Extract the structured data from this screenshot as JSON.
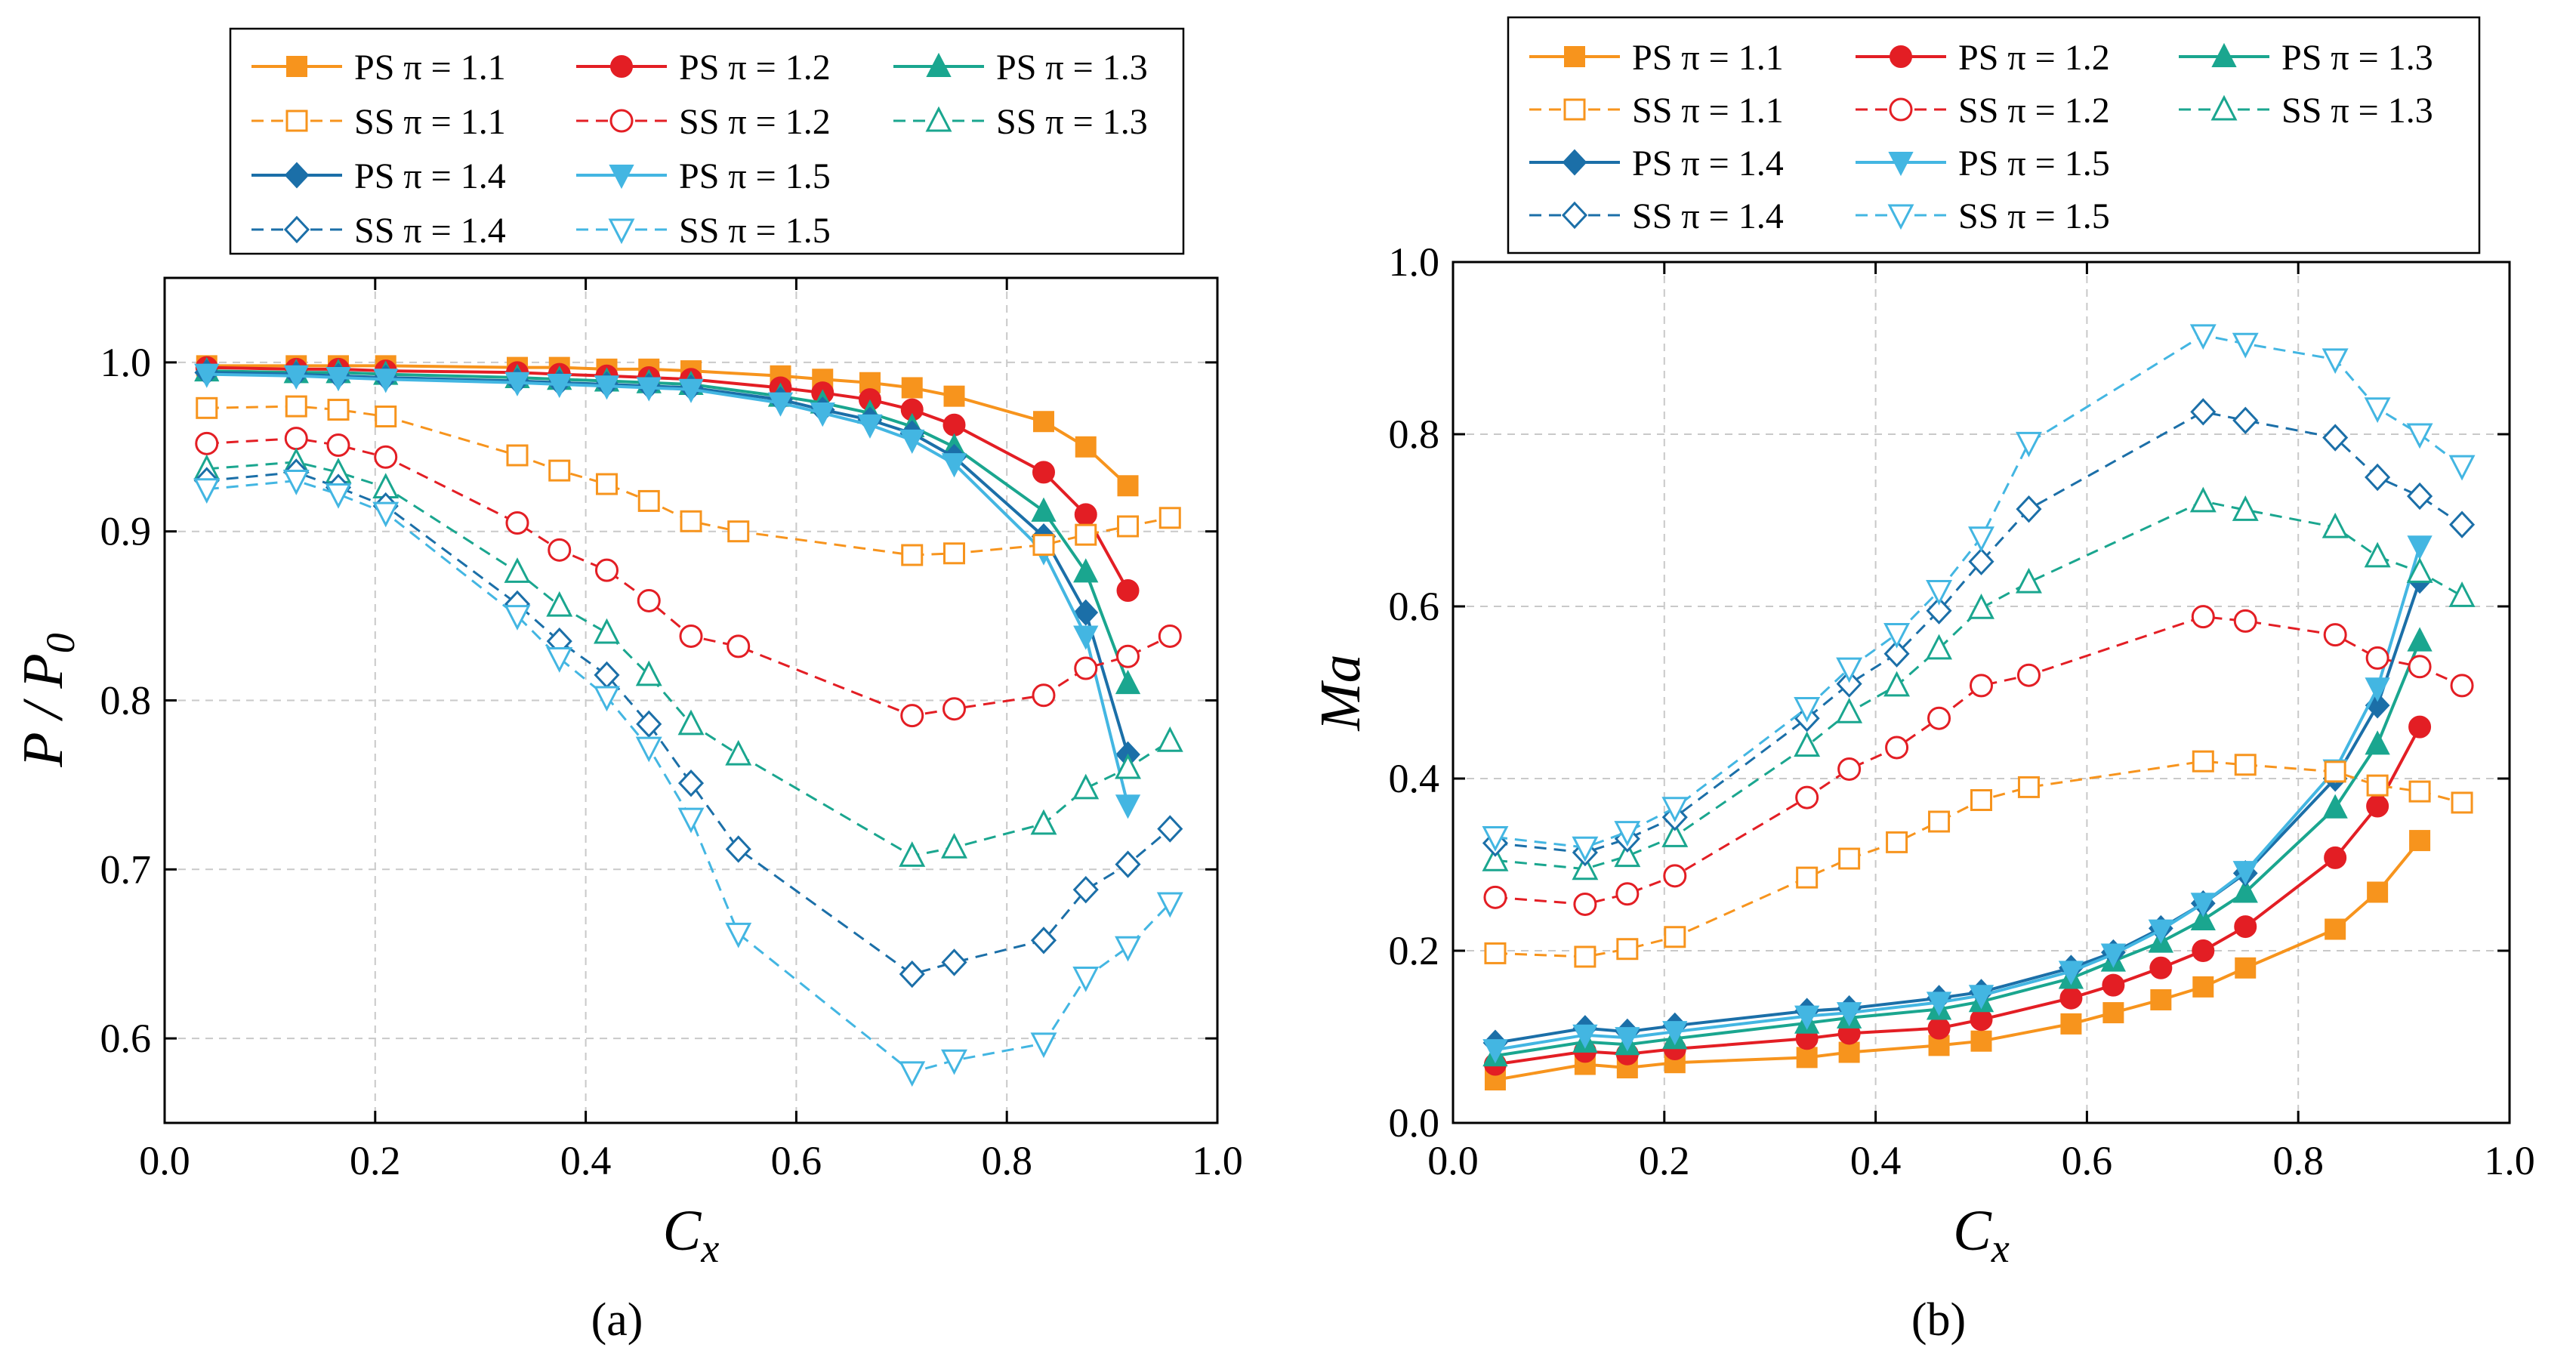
{
  "figure": {
    "label_a": "(a)",
    "label_b": "(b)"
  },
  "colors": {
    "pi_1_1": "#f7941d",
    "pi_1_2": "#e31e24",
    "pi_1_3": "#1aa68f",
    "pi_1_4": "#1b6fa8",
    "pi_1_5": "#43b6e2"
  },
  "chart_data": [
    {
      "id": "a",
      "type": "line",
      "xlabel": "C",
      "xlabel_sub": "x",
      "ylabel": "P / P",
      "ylabel_sub": "0",
      "xlim": [
        0.0,
        1.0
      ],
      "ylim": [
        0.55,
        1.05
      ],
      "xticks": [
        "0.0",
        "0.2",
        "0.4",
        "0.6",
        "0.8",
        "1.0"
      ],
      "yticks": [
        "0.6",
        "0.7",
        "0.8",
        "0.9",
        "1.0"
      ],
      "grid": true,
      "legend_position": "top",
      "series": [
        {
          "name": "PS π = 1.1",
          "side": "PS",
          "color": "#f7941d",
          "marker": "square",
          "filled": true,
          "dashed": false,
          "x": [
            0.04,
            0.125,
            0.165,
            0.21,
            0.335,
            0.375,
            0.42,
            0.46,
            0.5,
            0.585,
            0.625,
            0.67,
            0.71,
            0.75,
            0.835,
            0.875,
            0.915
          ],
          "y": [
            0.998,
            0.998,
            0.998,
            0.998,
            0.997,
            0.997,
            0.996,
            0.996,
            0.995,
            0.992,
            0.99,
            0.988,
            0.985,
            0.98,
            0.965,
            0.95,
            0.927
          ]
        },
        {
          "name": "PS π = 1.2",
          "side": "PS",
          "color": "#e31e24",
          "marker": "circle",
          "filled": true,
          "dashed": false,
          "x": [
            0.04,
            0.125,
            0.165,
            0.21,
            0.335,
            0.375,
            0.42,
            0.46,
            0.5,
            0.585,
            0.625,
            0.67,
            0.71,
            0.75,
            0.835,
            0.875,
            0.915
          ],
          "y": [
            0.997,
            0.996,
            0.996,
            0.995,
            0.994,
            0.993,
            0.992,
            0.991,
            0.99,
            0.985,
            0.982,
            0.978,
            0.972,
            0.963,
            0.935,
            0.91,
            0.865
          ]
        },
        {
          "name": "PS π = 1.3",
          "side": "PS",
          "color": "#1aa68f",
          "marker": "triangle-up",
          "filled": true,
          "dashed": false,
          "x": [
            0.04,
            0.125,
            0.165,
            0.21,
            0.335,
            0.375,
            0.42,
            0.46,
            0.5,
            0.585,
            0.625,
            0.67,
            0.71,
            0.75,
            0.835,
            0.875,
            0.915
          ],
          "y": [
            0.995,
            0.994,
            0.994,
            0.993,
            0.991,
            0.99,
            0.989,
            0.988,
            0.987,
            0.98,
            0.976,
            0.97,
            0.962,
            0.95,
            0.912,
            0.876,
            0.81
          ]
        },
        {
          "name": "PS π = 1.4",
          "side": "PS",
          "color": "#1b6fa8",
          "marker": "diamond",
          "filled": true,
          "dashed": false,
          "x": [
            0.04,
            0.125,
            0.165,
            0.21,
            0.335,
            0.375,
            0.42,
            0.46,
            0.5,
            0.585,
            0.625,
            0.67,
            0.71,
            0.75,
            0.835,
            0.875,
            0.915
          ],
          "y": [
            0.994,
            0.993,
            0.992,
            0.991,
            0.989,
            0.988,
            0.987,
            0.986,
            0.985,
            0.978,
            0.972,
            0.966,
            0.958,
            0.944,
            0.897,
            0.852,
            0.768
          ]
        },
        {
          "name": "PS π = 1.5",
          "side": "PS",
          "color": "#43b6e2",
          "marker": "triangle-down",
          "filled": true,
          "dashed": false,
          "x": [
            0.04,
            0.125,
            0.165,
            0.21,
            0.335,
            0.375,
            0.42,
            0.46,
            0.5,
            0.585,
            0.625,
            0.67,
            0.71,
            0.75,
            0.835,
            0.875,
            0.915
          ],
          "y": [
            0.993,
            0.992,
            0.991,
            0.99,
            0.988,
            0.987,
            0.986,
            0.985,
            0.984,
            0.976,
            0.97,
            0.963,
            0.954,
            0.94,
            0.888,
            0.838,
            0.738
          ]
        },
        {
          "name": "SS π = 1.1",
          "side": "SS",
          "color": "#f7941d",
          "marker": "square",
          "filled": false,
          "dashed": true,
          "x": [
            0.04,
            0.125,
            0.165,
            0.21,
            0.335,
            0.375,
            0.42,
            0.46,
            0.5,
            0.545,
            0.71,
            0.75,
            0.835,
            0.875,
            0.915,
            0.955
          ],
          "y": [
            0.973,
            0.974,
            0.972,
            0.968,
            0.945,
            0.936,
            0.928,
            0.918,
            0.906,
            0.9,
            0.886,
            0.887,
            0.892,
            0.898,
            0.903,
            0.908
          ]
        },
        {
          "name": "SS π = 1.2",
          "side": "SS",
          "color": "#e31e24",
          "marker": "circle",
          "filled": false,
          "dashed": true,
          "x": [
            0.04,
            0.125,
            0.165,
            0.21,
            0.335,
            0.375,
            0.42,
            0.46,
            0.5,
            0.545,
            0.71,
            0.75,
            0.835,
            0.875,
            0.915,
            0.955
          ],
          "y": [
            0.952,
            0.955,
            0.951,
            0.944,
            0.905,
            0.889,
            0.877,
            0.859,
            0.838,
            0.832,
            0.791,
            0.795,
            0.803,
            0.819,
            0.826,
            0.838
          ]
        },
        {
          "name": "SS π = 1.3",
          "side": "SS",
          "color": "#1aa68f",
          "marker": "triangle-up",
          "filled": false,
          "dashed": true,
          "x": [
            0.04,
            0.125,
            0.165,
            0.21,
            0.335,
            0.375,
            0.42,
            0.46,
            0.5,
            0.545,
            0.71,
            0.75,
            0.835,
            0.875,
            0.915,
            0.955
          ],
          "y": [
            0.937,
            0.941,
            0.935,
            0.926,
            0.876,
            0.856,
            0.84,
            0.815,
            0.786,
            0.768,
            0.708,
            0.713,
            0.727,
            0.748,
            0.76,
            0.776
          ]
        },
        {
          "name": "SS π = 1.4",
          "side": "SS",
          "color": "#1b6fa8",
          "marker": "diamond",
          "filled": false,
          "dashed": true,
          "x": [
            0.04,
            0.125,
            0.165,
            0.21,
            0.335,
            0.375,
            0.42,
            0.46,
            0.5,
            0.545,
            0.71,
            0.75,
            0.835,
            0.875,
            0.915,
            0.955
          ],
          "y": [
            0.93,
            0.935,
            0.926,
            0.915,
            0.857,
            0.835,
            0.815,
            0.786,
            0.751,
            0.712,
            0.638,
            0.645,
            0.658,
            0.688,
            0.703,
            0.724
          ]
        },
        {
          "name": "SS π = 1.5",
          "side": "SS",
          "color": "#43b6e2",
          "marker": "triangle-down",
          "filled": false,
          "dashed": true,
          "x": [
            0.04,
            0.125,
            0.165,
            0.21,
            0.335,
            0.375,
            0.42,
            0.46,
            0.5,
            0.545,
            0.71,
            0.75,
            0.835,
            0.875,
            0.915,
            0.955
          ],
          "y": [
            0.925,
            0.93,
            0.922,
            0.911,
            0.85,
            0.825,
            0.802,
            0.772,
            0.73,
            0.662,
            0.58,
            0.587,
            0.597,
            0.636,
            0.654,
            0.68
          ]
        }
      ]
    },
    {
      "id": "b",
      "type": "line",
      "xlabel": "C",
      "xlabel_sub": "x",
      "ylabel": "Ma",
      "ylabel_sub": "",
      "xlim": [
        0.0,
        1.0
      ],
      "ylim": [
        0.0,
        1.0
      ],
      "xticks": [
        "0.0",
        "0.2",
        "0.4",
        "0.6",
        "0.8",
        "1.0"
      ],
      "yticks": [
        "0.0",
        "0.2",
        "0.4",
        "0.6",
        "0.8",
        "1.0"
      ],
      "grid": true,
      "legend_position": "top",
      "series": [
        {
          "name": "PS π = 1.1",
          "side": "PS",
          "color": "#f7941d",
          "marker": "square",
          "filled": true,
          "dashed": false,
          "x": [
            0.04,
            0.125,
            0.165,
            0.21,
            0.335,
            0.375,
            0.46,
            0.5,
            0.585,
            0.625,
            0.67,
            0.71,
            0.75,
            0.835,
            0.875,
            0.915
          ],
          "y": [
            0.05,
            0.068,
            0.064,
            0.07,
            0.076,
            0.082,
            0.09,
            0.095,
            0.115,
            0.128,
            0.143,
            0.158,
            0.18,
            0.225,
            0.268,
            0.328
          ]
        },
        {
          "name": "PS π = 1.2",
          "side": "PS",
          "color": "#e31e24",
          "marker": "circle",
          "filled": true,
          "dashed": false,
          "x": [
            0.04,
            0.125,
            0.165,
            0.21,
            0.335,
            0.375,
            0.46,
            0.5,
            0.585,
            0.625,
            0.67,
            0.71,
            0.75,
            0.835,
            0.875,
            0.915
          ],
          "y": [
            0.068,
            0.083,
            0.08,
            0.086,
            0.098,
            0.104,
            0.11,
            0.12,
            0.145,
            0.16,
            0.18,
            0.2,
            0.228,
            0.308,
            0.368,
            0.46
          ]
        },
        {
          "name": "PS π = 1.3",
          "side": "PS",
          "color": "#1aa68f",
          "marker": "triangle-up",
          "filled": true,
          "dashed": false,
          "x": [
            0.04,
            0.125,
            0.165,
            0.21,
            0.335,
            0.375,
            0.46,
            0.5,
            0.585,
            0.625,
            0.67,
            0.71,
            0.75,
            0.835,
            0.875,
            0.915
          ],
          "y": [
            0.078,
            0.094,
            0.091,
            0.098,
            0.116,
            0.122,
            0.132,
            0.141,
            0.168,
            0.188,
            0.21,
            0.236,
            0.268,
            0.366,
            0.44,
            0.56
          ]
        },
        {
          "name": "PS π = 1.4",
          "side": "PS",
          "color": "#1b6fa8",
          "marker": "diamond",
          "filled": true,
          "dashed": false,
          "x": [
            0.04,
            0.125,
            0.165,
            0.21,
            0.335,
            0.375,
            0.46,
            0.5,
            0.585,
            0.625,
            0.67,
            0.71,
            0.75,
            0.835,
            0.875,
            0.915
          ],
          "y": [
            0.093,
            0.11,
            0.106,
            0.113,
            0.13,
            0.133,
            0.145,
            0.152,
            0.18,
            0.198,
            0.226,
            0.255,
            0.29,
            0.4,
            0.485,
            0.63
          ]
        },
        {
          "name": "PS π = 1.5",
          "side": "PS",
          "color": "#43b6e2",
          "marker": "triangle-down",
          "filled": true,
          "dashed": false,
          "x": [
            0.04,
            0.125,
            0.165,
            0.21,
            0.335,
            0.375,
            0.46,
            0.5,
            0.585,
            0.625,
            0.67,
            0.71,
            0.75,
            0.835,
            0.875,
            0.915
          ],
          "y": [
            0.085,
            0.102,
            0.099,
            0.106,
            0.124,
            0.128,
            0.14,
            0.148,
            0.176,
            0.196,
            0.224,
            0.255,
            0.292,
            0.41,
            0.505,
            0.67
          ]
        },
        {
          "name": "SS π = 1.1",
          "side": "SS",
          "color": "#f7941d",
          "marker": "square",
          "filled": false,
          "dashed": true,
          "x": [
            0.04,
            0.125,
            0.165,
            0.21,
            0.335,
            0.375,
            0.42,
            0.46,
            0.5,
            0.545,
            0.71,
            0.75,
            0.835,
            0.875,
            0.915,
            0.955
          ],
          "y": [
            0.197,
            0.193,
            0.202,
            0.216,
            0.285,
            0.307,
            0.326,
            0.35,
            0.375,
            0.39,
            0.42,
            0.416,
            0.408,
            0.392,
            0.385,
            0.372
          ]
        },
        {
          "name": "SS π = 1.2",
          "side": "SS",
          "color": "#e31e24",
          "marker": "circle",
          "filled": false,
          "dashed": true,
          "x": [
            0.04,
            0.125,
            0.165,
            0.21,
            0.335,
            0.375,
            0.42,
            0.46,
            0.5,
            0.545,
            0.71,
            0.75,
            0.835,
            0.875,
            0.915,
            0.955
          ],
          "y": [
            0.262,
            0.254,
            0.266,
            0.287,
            0.378,
            0.411,
            0.436,
            0.47,
            0.508,
            0.52,
            0.588,
            0.583,
            0.567,
            0.54,
            0.53,
            0.508
          ]
        },
        {
          "name": "SS π = 1.3",
          "side": "SS",
          "color": "#1aa68f",
          "marker": "triangle-up",
          "filled": false,
          "dashed": true,
          "x": [
            0.04,
            0.125,
            0.165,
            0.21,
            0.335,
            0.375,
            0.42,
            0.46,
            0.5,
            0.545,
            0.71,
            0.75,
            0.835,
            0.875,
            0.915,
            0.955
          ],
          "y": [
            0.305,
            0.295,
            0.31,
            0.333,
            0.438,
            0.477,
            0.508,
            0.551,
            0.598,
            0.628,
            0.722,
            0.712,
            0.692,
            0.658,
            0.64,
            0.612
          ]
        },
        {
          "name": "SS π = 1.4",
          "side": "SS",
          "color": "#1b6fa8",
          "marker": "diamond",
          "filled": false,
          "dashed": true,
          "x": [
            0.04,
            0.125,
            0.165,
            0.21,
            0.335,
            0.375,
            0.42,
            0.46,
            0.5,
            0.545,
            0.71,
            0.75,
            0.835,
            0.875,
            0.915,
            0.955
          ],
          "y": [
            0.325,
            0.314,
            0.33,
            0.355,
            0.47,
            0.51,
            0.545,
            0.595,
            0.652,
            0.713,
            0.826,
            0.816,
            0.796,
            0.75,
            0.728,
            0.695
          ]
        },
        {
          "name": "SS π = 1.5",
          "side": "SS",
          "color": "#43b6e2",
          "marker": "triangle-down",
          "filled": false,
          "dashed": true,
          "x": [
            0.04,
            0.125,
            0.165,
            0.21,
            0.335,
            0.375,
            0.42,
            0.46,
            0.5,
            0.545,
            0.71,
            0.75,
            0.835,
            0.875,
            0.915,
            0.955
          ],
          "y": [
            0.332,
            0.32,
            0.338,
            0.366,
            0.482,
            0.528,
            0.568,
            0.618,
            0.68,
            0.79,
            0.915,
            0.905,
            0.887,
            0.83,
            0.8,
            0.763
          ]
        }
      ]
    }
  ]
}
